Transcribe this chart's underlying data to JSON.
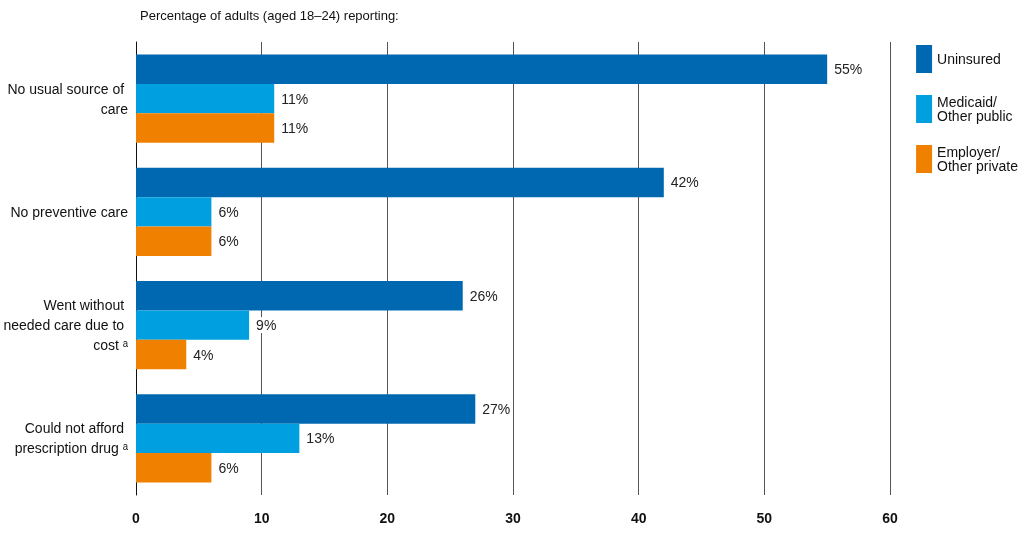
{
  "chart_data": {
    "type": "bar",
    "orientation": "horizontal",
    "title": "Percentage of adults (aged 18–24) reporting:",
    "categories": [
      "No usual source of care",
      "No preventive care",
      "Went without needed care due to cost ᵃ",
      "Could not afford prescription drug ᵃ"
    ],
    "series": [
      {
        "name": "Uninsured",
        "color": "#0068b1",
        "values": [
          55,
          42,
          26,
          27
        ],
        "value_labels": [
          "55%",
          "42%",
          "26%",
          "27%"
        ]
      },
      {
        "name": "Medicaid/ Other public",
        "color": "#00a0e0",
        "values": [
          11,
          6,
          9,
          13
        ],
        "value_labels": [
          "11%",
          "6%",
          "9%",
          "13%"
        ]
      },
      {
        "name": "Employer/ Other private",
        "color": "#f08100",
        "values": [
          11,
          6,
          4,
          6
        ],
        "value_labels": [
          "11%",
          "6%",
          "4%",
          "6%"
        ]
      }
    ],
    "xlim": [
      0,
      60
    ],
    "xticks": [
      0,
      10,
      20,
      30,
      40,
      50,
      60
    ],
    "grid": "x",
    "legend": "right"
  }
}
